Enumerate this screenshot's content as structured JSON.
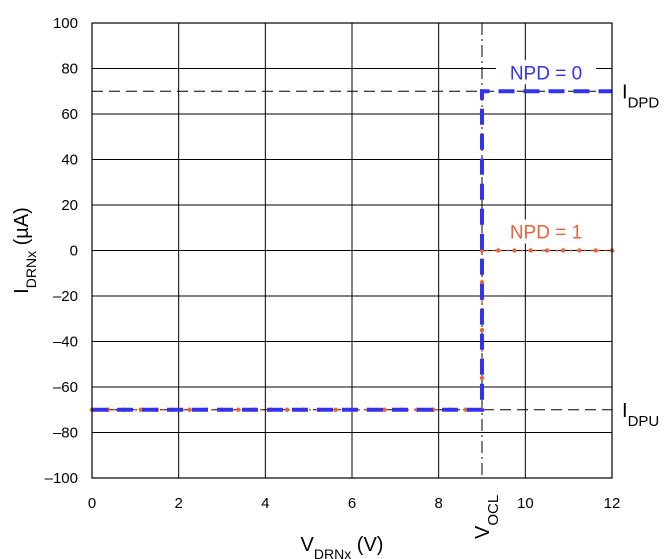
{
  "chart_data": {
    "type": "line",
    "xlabel": {
      "main": "V",
      "sub": "DRNx",
      "unit": " (V)"
    },
    "ylabel": {
      "main": "I",
      "sub": "DRNx",
      "unit": " (µA)"
    },
    "xlim": [
      0,
      12
    ],
    "ylim": [
      -100,
      100
    ],
    "x_ticks": [
      {
        "value": 0,
        "label": "0"
      },
      {
        "value": 2,
        "label": "2"
      },
      {
        "value": 4,
        "label": "4"
      },
      {
        "value": 6,
        "label": "6"
      },
      {
        "value": 8,
        "label": "8"
      },
      {
        "value": 10,
        "label": "10"
      },
      {
        "value": 12,
        "label": "12"
      }
    ],
    "y_ticks": [
      {
        "value": 100,
        "label": "100"
      },
      {
        "value": 80,
        "label": "80"
      },
      {
        "value": 60,
        "label": "60"
      },
      {
        "value": 40,
        "label": "40"
      },
      {
        "value": 20,
        "label": "20"
      },
      {
        "value": 0,
        "label": "0"
      },
      {
        "value": -20,
        "label": "–20"
      },
      {
        "value": -40,
        "label": "–40"
      },
      {
        "value": -60,
        "label": "–60"
      },
      {
        "value": -80,
        "label": "–80"
      },
      {
        "value": -100,
        "label": "–100"
      }
    ],
    "grid": true,
    "reference_lines": [
      {
        "axis": "y",
        "value": 70,
        "label_main": "I",
        "label_sub": "DPD"
      },
      {
        "axis": "y",
        "value": -70,
        "label_main": "I",
        "label_sub": "DPU"
      },
      {
        "axis": "x",
        "value": 9,
        "label_main": "V",
        "label_sub": "OCL"
      }
    ],
    "series": [
      {
        "name": "NPD = 0",
        "color": "#3333ee",
        "style": "dashed",
        "x": [
          0,
          9,
          9,
          12
        ],
        "y": [
          -70,
          -70,
          70,
          70
        ]
      },
      {
        "name": "NPD = 1",
        "color": "#e8643a",
        "style": "dotted",
        "x": [
          0,
          9,
          9,
          12
        ],
        "y": [
          -70,
          -70,
          0,
          0
        ]
      }
    ]
  }
}
